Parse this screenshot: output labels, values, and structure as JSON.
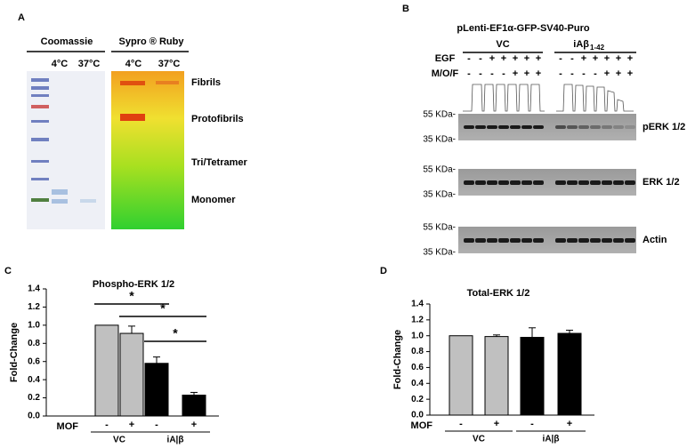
{
  "panel_a": {
    "label": "A",
    "stains": [
      "Coomassie",
      "Sypro ® Ruby"
    ],
    "temps": [
      "4°C",
      "37°C",
      "4°C",
      "37°C"
    ],
    "bands": [
      "Fibrils",
      "Protofibrils",
      "Tri/Tetramer",
      "Monomer"
    ]
  },
  "panel_b": {
    "label": "B",
    "title": "pLenti-EF1α-GFP-SV40-Puro",
    "groups": [
      "VC",
      "iAβ"
    ],
    "group_subscript": "1-42",
    "rows": [
      {
        "label": "EGF",
        "signs": [
          "-",
          "-",
          "+",
          "+",
          "+",
          "+",
          "+",
          "-",
          "-",
          "+",
          "+",
          "+",
          "+",
          "+"
        ]
      },
      {
        "label": "M/O/F",
        "signs": [
          "-",
          "-",
          "-",
          "-",
          "+",
          "+",
          "+",
          "-",
          "-",
          "-",
          "-",
          "+",
          "+",
          "+"
        ]
      }
    ],
    "blots": [
      {
        "name": "pERK 1/2",
        "markers": [
          "55 KDa-",
          "35 KDa-"
        ]
      },
      {
        "name": "ERK 1/2",
        "markers": [
          "55 KDa-",
          "35 KDa-"
        ]
      },
      {
        "name": "Actin",
        "markers": [
          "55 KDa-",
          "35 KDa-"
        ]
      }
    ]
  },
  "chart_data": [
    {
      "type": "bar",
      "panel": "C",
      "title": "Phospho-ERK 1/2",
      "y_label": "Fold-Change",
      "x_row_label": "MOF",
      "categories": [
        "-",
        "+",
        "-",
        "+"
      ],
      "groups": [
        "VC",
        "iA|β"
      ],
      "values": [
        1.0,
        0.91,
        0.58,
        0.23
      ],
      "errors": [
        0,
        0.08,
        0.07,
        0.03
      ],
      "colors": [
        "#c0c0c0",
        "#c0c0c0",
        "#000000",
        "#000000"
      ],
      "annotations": [
        "*",
        "*",
        "*"
      ],
      "ylim": [
        0,
        1.4
      ],
      "yticks": [
        {
          "value": 0,
          "label": "0.0"
        },
        {
          "value": 0.2,
          "label": "0.2"
        },
        {
          "value": 0.4,
          "label": "0.4"
        },
        {
          "value": 0.6,
          "label": "0.6"
        },
        {
          "value": 0.8,
          "label": "0.8"
        },
        {
          "value": 1.0,
          "label": "1.0"
        },
        {
          "value": 1.2,
          "label": "1.2"
        },
        {
          "value": 1.4,
          "label": "1.4"
        }
      ]
    },
    {
      "type": "bar",
      "panel": "D",
      "title": "Total-ERK 1/2",
      "y_label": "Fold-Change",
      "x_row_label": "MOF",
      "categories": [
        "-",
        "+",
        "-",
        "+"
      ],
      "groups": [
        "VC",
        "iA|β"
      ],
      "values": [
        1.0,
        0.99,
        0.98,
        1.03
      ],
      "errors": [
        0,
        0.02,
        0.12,
        0.04
      ],
      "colors": [
        "#c0c0c0",
        "#c0c0c0",
        "#000000",
        "#000000"
      ],
      "ylim": [
        0,
        1.4
      ],
      "yticks": [
        {
          "value": 0,
          "label": "0.0"
        },
        {
          "value": 0.2,
          "label": "0.2"
        },
        {
          "value": 0.4,
          "label": "0.4"
        },
        {
          "value": 0.6,
          "label": "0.6"
        },
        {
          "value": 0.8,
          "label": "0.8"
        },
        {
          "value": 1.0,
          "label": "1.0"
        },
        {
          "value": 1.2,
          "label": "1.2"
        },
        {
          "value": 1.4,
          "label": "1.4"
        }
      ]
    }
  ]
}
